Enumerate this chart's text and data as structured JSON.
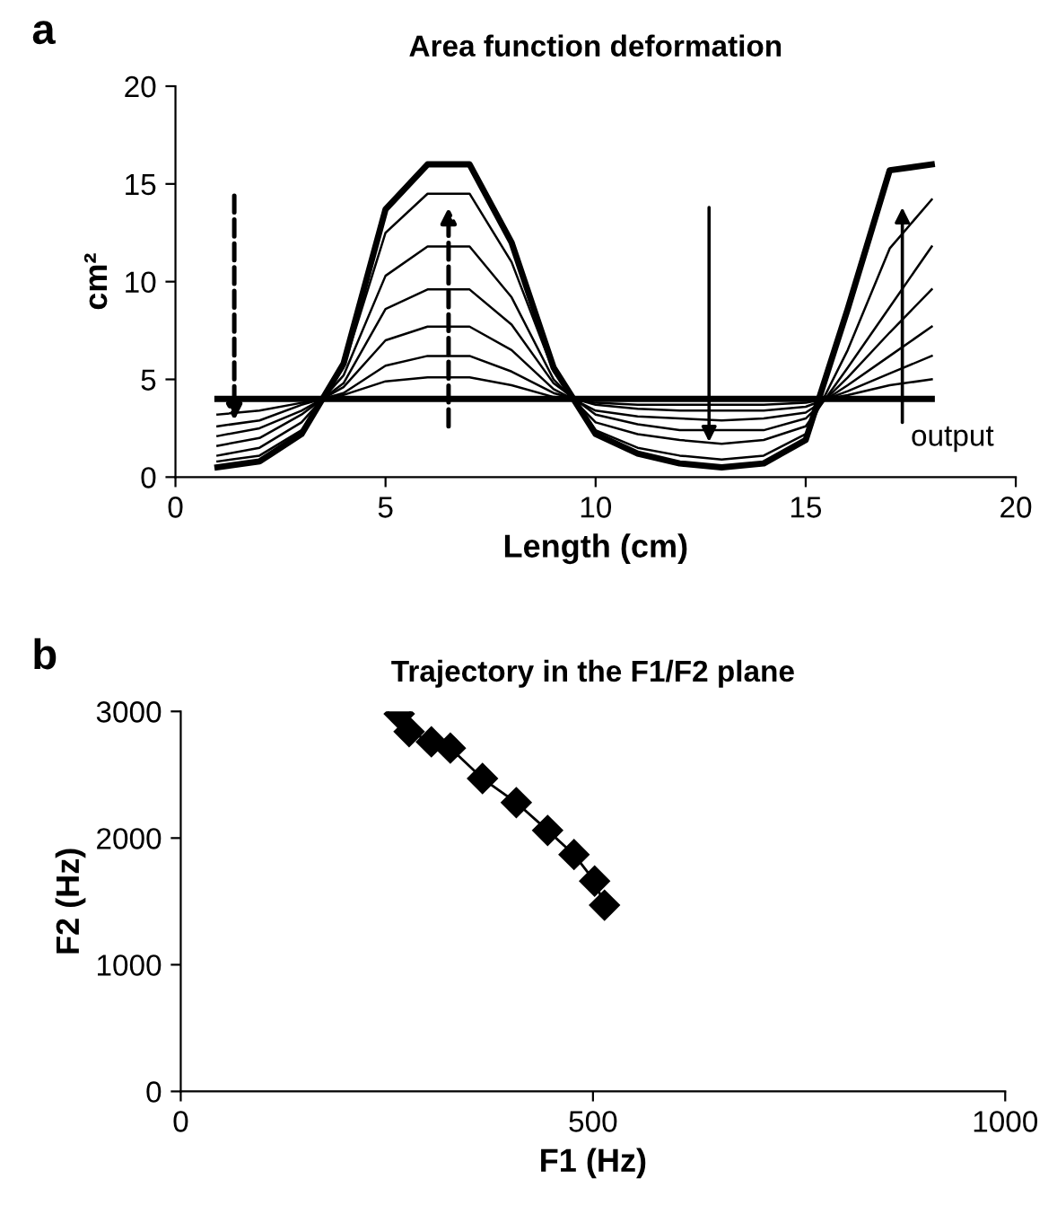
{
  "chart_data": [
    {
      "type": "line",
      "title": "Area function deformation",
      "xlabel": "Length (cm)",
      "ylabel": "cm²",
      "annotations": [
        "a",
        "output"
      ],
      "x": [
        1,
        2,
        3,
        4,
        5,
        6,
        7,
        8,
        9,
        10,
        11,
        12,
        13,
        14,
        15,
        16,
        17,
        18
      ],
      "series": [
        {
          "color": "#000000",
          "values": [
            4,
            4,
            4,
            4,
            4,
            4,
            4,
            4,
            4,
            4,
            4,
            4,
            4,
            4,
            4,
            4,
            4,
            4
          ]
        },
        {
          "color": "#000000",
          "values": [
            3.2,
            3.4,
            3.8,
            4.2,
            4.9,
            5.1,
            5.1,
            4.7,
            4.1,
            3.8,
            3.7,
            3.7,
            3.7,
            3.7,
            3.8,
            4.2,
            4.7,
            5.0
          ]
        },
        {
          "color": "#000000",
          "values": [
            2.6,
            2.9,
            3.7,
            4.3,
            5.7,
            6.2,
            6.2,
            5.4,
            4.3,
            3.7,
            3.5,
            3.4,
            3.4,
            3.4,
            3.6,
            4.4,
            5.3,
            6.2
          ]
        },
        {
          "color": "#000000",
          "values": [
            2.1,
            2.5,
            3.4,
            4.6,
            7.0,
            7.7,
            7.7,
            6.5,
            4.5,
            3.4,
            3.1,
            3.0,
            2.9,
            3.0,
            3.3,
            4.7,
            6.2,
            7.7
          ]
        },
        {
          "color": "#000000",
          "values": [
            1.6,
            2.0,
            3.2,
            4.8,
            8.6,
            9.6,
            9.6,
            7.8,
            4.8,
            3.2,
            2.7,
            2.4,
            2.4,
            2.4,
            3.0,
            5.1,
            7.4,
            9.6
          ]
        },
        {
          "color": "#000000",
          "values": [
            1.1,
            1.5,
            2.8,
            5.2,
            10.3,
            11.8,
            11.8,
            9.2,
            5.0,
            2.8,
            2.2,
            1.9,
            1.7,
            1.9,
            2.6,
            5.6,
            8.7,
            11.8
          ]
        },
        {
          "color": "#000000",
          "values": [
            0.8,
            1.1,
            2.4,
            5.6,
            12.5,
            14.5,
            14.5,
            11.0,
            5.4,
            2.4,
            1.5,
            1.1,
            0.9,
            1.1,
            2.2,
            6.5,
            11.7,
            14.2
          ]
        },
        {
          "color": "#000000",
          "values": [
            0.5,
            0.8,
            2.2,
            5.8,
            13.7,
            16,
            16,
            12,
            5.6,
            2.2,
            1.2,
            0.7,
            0.5,
            0.7,
            1.9,
            8.6,
            15.7,
            16
          ]
        }
      ],
      "xlim": [
        0,
        20
      ],
      "xticks": [
        0,
        5,
        10,
        15,
        20
      ],
      "ylim": [
        0,
        20
      ],
      "yticks": [
        0,
        5,
        10,
        15,
        20
      ],
      "grid": false,
      "legend": false,
      "marker": "none"
    },
    {
      "type": "line",
      "title": "Trajectory in the F1/F2 plane",
      "xlabel": "F1 (Hz)",
      "ylabel": "F2 (Hz)",
      "annotations": [
        "b"
      ],
      "x": [
        265,
        277,
        304,
        327,
        366,
        407,
        445,
        477,
        502,
        514
      ],
      "series": [
        {
          "color": "#000000",
          "values": [
            2980,
            2840,
            2760,
            2710,
            2470,
            2280,
            2060,
            1870,
            1660,
            1470
          ]
        }
      ],
      "xlim": [
        0,
        1000
      ],
      "xticks": [
        0,
        500,
        1000
      ],
      "ylim": [
        0,
        3000
      ],
      "yticks": [
        0,
        1000,
        2000,
        3000
      ],
      "grid": false,
      "legend": false,
      "marker": "diamond"
    }
  ]
}
